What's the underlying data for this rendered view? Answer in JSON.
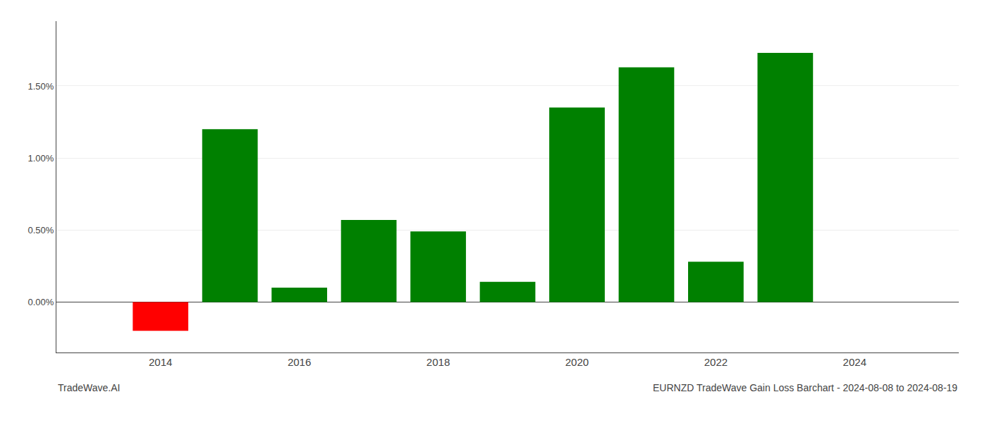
{
  "chart_data": {
    "type": "bar",
    "x": [
      2014,
      2015,
      2016,
      2017,
      2018,
      2019,
      2020,
      2021,
      2022,
      2023
    ],
    "values": [
      -0.2,
      1.2,
      0.1,
      0.57,
      0.49,
      0.14,
      1.35,
      1.63,
      0.28,
      1.73
    ],
    "colors": [
      "#ff0000",
      "#008000",
      "#008000",
      "#008000",
      "#008000",
      "#008000",
      "#008000",
      "#008000",
      "#008000",
      "#008000"
    ],
    "xlim": [
      2012.5,
      2025.5
    ],
    "xticks": [
      2014,
      2016,
      2018,
      2020,
      2022,
      2024
    ],
    "ylim": [
      -0.35,
      1.95
    ],
    "yticks": [
      {
        "value": 0.0,
        "label": "0.00%"
      },
      {
        "value": 0.5,
        "label": "0.50%"
      },
      {
        "value": 1.0,
        "label": "1.00%"
      },
      {
        "value": 1.5,
        "label": "1.50%"
      }
    ],
    "grid": true,
    "annotations": [
      "TradeWave.AI",
      "EURNZD TradeWave Gain Loss Barchart - 2024-08-08 to 2024-08-19"
    ]
  }
}
